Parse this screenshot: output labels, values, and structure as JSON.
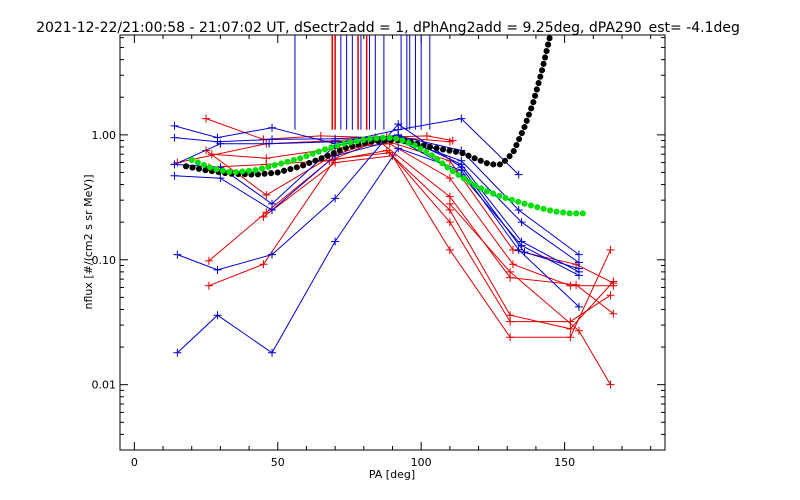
{
  "chart_data": {
    "type": "scatter",
    "title": "2021-12-22/21:00:58 - 21:07:02 UT, dSectr2add = 1, dPhAng2add = 9.25deg, dPA290_est=  -4.1deg",
    "xlabel": "PA [deg]",
    "ylabel": "nflux [#/(cm2 s sr MeV)]",
    "xlim": [
      -5,
      185
    ],
    "ylim": [
      0.003,
      6.3
    ],
    "y_scale": "log",
    "grid": false,
    "x_ticks": [
      0,
      50,
      100,
      150
    ],
    "x_tick_labels": [
      "0",
      "50",
      "100",
      "150"
    ],
    "y_ticks": [
      0.01,
      0.1,
      1.0
    ],
    "y_tick_labels": [
      "0.01",
      "0.10",
      "1.00"
    ],
    "colors": {
      "red": "#e00000",
      "blue": "#0000d0",
      "black": "#000000",
      "green": "#00e000"
    },
    "vlines": {
      "ymin": 1.1,
      "ymax": 6.3,
      "blue": [
        56,
        72,
        74,
        76,
        79,
        82,
        84,
        87,
        93,
        95,
        96,
        98,
        100,
        103
      ],
      "red": [
        69,
        70,
        78,
        81
      ]
    },
    "series": [
      {
        "color": "red",
        "points": [
          [
            25,
            1.35
          ],
          [
            45,
            0.92
          ],
          [
            65,
            0.98
          ],
          [
            84,
            0.95
          ],
          [
            102,
            0.98
          ],
          [
            111,
            0.9
          ]
        ]
      },
      {
        "color": "red",
        "points": [
          [
            15,
            0.6
          ],
          [
            46,
            0.85
          ],
          [
            70,
            0.9
          ],
          [
            88,
            0.97
          ],
          [
            110,
            0.88
          ]
        ]
      },
      {
        "color": "red",
        "points": [
          [
            26,
            0.55
          ],
          [
            46,
            0.58
          ],
          [
            68,
            0.62
          ],
          [
            86,
            0.92
          ],
          [
            110,
            0.62
          ],
          [
            132,
            0.12
          ],
          [
            154,
            0.092
          ],
          [
            167,
            0.065
          ]
        ]
      },
      {
        "color": "red",
        "points": [
          [
            27,
            0.7
          ],
          [
            46,
            0.65
          ],
          [
            70,
            0.78
          ],
          [
            89,
            0.85
          ],
          [
            110,
            0.45
          ],
          [
            132,
            0.092
          ],
          [
            152,
            0.062
          ],
          [
            167,
            0.062
          ]
        ]
      },
      {
        "color": "red",
        "points": [
          [
            25,
            0.75
          ],
          [
            46,
            0.33
          ],
          [
            69,
            0.68
          ],
          [
            85,
            0.9
          ],
          [
            110,
            0.32
          ],
          [
            131,
            0.072
          ],
          [
            154,
            0.063
          ],
          [
            167,
            0.037
          ]
        ]
      },
      {
        "color": "red",
        "points": [
          [
            26,
            0.098
          ],
          [
            46,
            0.24
          ],
          [
            68,
            0.62
          ],
          [
            88,
            0.75
          ],
          [
            110,
            0.25
          ],
          [
            131,
            0.036
          ],
          [
            152,
            0.028
          ],
          [
            167,
            0.067
          ]
        ]
      },
      {
        "color": "red",
        "points": [
          [
            26,
            0.062
          ],
          [
            45,
            0.092
          ],
          [
            70,
            0.64
          ],
          [
            89,
            0.72
          ],
          [
            110,
            0.2
          ],
          [
            131,
            0.032
          ],
          [
            152,
            0.032
          ],
          [
            166,
            0.052
          ]
        ]
      },
      {
        "color": "red",
        "points": [
          [
            45,
            0.22
          ],
          [
            70,
            0.6
          ],
          [
            90,
            0.68
          ],
          [
            110,
            0.12
          ],
          [
            131,
            0.024
          ],
          [
            152,
            0.024
          ],
          [
            166,
            0.12
          ]
        ]
      },
      {
        "color": "red",
        "points": [
          [
            110,
            0.28
          ],
          [
            131,
            0.08
          ],
          [
            155,
            0.027
          ],
          [
            166,
            0.01
          ]
        ]
      },
      {
        "color": "blue",
        "points": [
          [
            14,
            1.18
          ],
          [
            29,
            0.95
          ],
          [
            48,
            1.14
          ],
          [
            70,
            0.85
          ],
          [
            92,
            1.1
          ],
          [
            114,
            1.35
          ],
          [
            134,
            0.48
          ]
        ]
      },
      {
        "color": "blue",
        "points": [
          [
            14,
            0.95
          ],
          [
            29,
            0.88
          ],
          [
            48,
            0.92
          ],
          [
            70,
            0.93
          ],
          [
            92,
            0.98
          ],
          [
            114,
            0.75
          ],
          [
            134,
            0.25
          ],
          [
            155,
            0.11
          ]
        ]
      },
      {
        "color": "blue",
        "points": [
          [
            14,
            0.58
          ],
          [
            30,
            0.85
          ],
          [
            47,
            0.85
          ],
          [
            70,
            0.88
          ],
          [
            93,
            0.92
          ],
          [
            114,
            0.62
          ],
          [
            135,
            0.2
          ],
          [
            155,
            0.095
          ]
        ]
      },
      {
        "color": "blue",
        "points": [
          [
            14,
            0.58
          ],
          [
            30,
            0.55
          ],
          [
            48,
            0.28
          ],
          [
            70,
            0.82
          ],
          [
            92,
            1.0
          ],
          [
            114,
            0.58
          ],
          [
            135,
            0.14
          ],
          [
            155,
            0.08
          ]
        ]
      },
      {
        "color": "blue",
        "points": [
          [
            14,
            0.47
          ],
          [
            30,
            0.45
          ],
          [
            48,
            0.25
          ],
          [
            70,
            0.68
          ],
          [
            92,
            0.92
          ],
          [
            114,
            0.48
          ],
          [
            135,
            0.13
          ],
          [
            155,
            0.075
          ]
        ]
      },
      {
        "color": "blue",
        "points": [
          [
            15,
            0.11
          ],
          [
            29,
            0.083
          ],
          [
            48,
            0.11
          ],
          [
            70,
            0.31
          ],
          [
            92,
            1.22
          ],
          [
            114,
            0.55
          ],
          [
            136,
            0.115
          ],
          [
            155,
            0.085
          ]
        ]
      },
      {
        "color": "blue",
        "points": [
          [
            15,
            0.018
          ],
          [
            29,
            0.036
          ],
          [
            48,
            0.018
          ],
          [
            70,
            0.14
          ],
          [
            92,
            0.78
          ],
          [
            114,
            0.52
          ],
          [
            134,
            0.12
          ],
          [
            155,
            0.042
          ]
        ]
      }
    ],
    "fits": [
      {
        "color": "black",
        "points": [
          [
            18,
            0.56
          ],
          [
            25,
            0.52
          ],
          [
            33,
            0.49
          ],
          [
            42,
            0.48
          ],
          [
            50,
            0.5
          ],
          [
            58,
            0.56
          ],
          [
            66,
            0.66
          ],
          [
            74,
            0.79
          ],
          [
            82,
            0.88
          ],
          [
            90,
            0.91
          ],
          [
            96,
            0.88
          ],
          [
            102,
            0.81
          ],
          [
            108,
            0.76
          ],
          [
            114,
            0.72
          ],
          [
            120,
            0.63
          ],
          [
            124,
            0.58
          ],
          [
            128,
            0.58
          ],
          [
            132,
            0.72
          ],
          [
            136,
            1.15
          ],
          [
            139,
            1.8
          ],
          [
            142,
            3.2
          ],
          [
            144,
            5.0
          ],
          [
            145,
            6.3
          ]
        ]
      },
      {
        "color": "green",
        "points": [
          [
            20,
            0.63
          ],
          [
            27,
            0.54
          ],
          [
            34,
            0.5
          ],
          [
            42,
            0.52
          ],
          [
            50,
            0.58
          ],
          [
            58,
            0.65
          ],
          [
            66,
            0.76
          ],
          [
            74,
            0.86
          ],
          [
            82,
            0.93
          ],
          [
            88,
            0.95
          ],
          [
            92,
            0.93
          ],
          [
            98,
            0.82
          ],
          [
            104,
            0.68
          ],
          [
            110,
            0.53
          ],
          [
            116,
            0.43
          ],
          [
            122,
            0.36
          ],
          [
            128,
            0.32
          ],
          [
            134,
            0.29
          ],
          [
            140,
            0.265
          ],
          [
            146,
            0.245
          ],
          [
            152,
            0.235
          ],
          [
            158,
            0.235
          ]
        ]
      }
    ]
  }
}
